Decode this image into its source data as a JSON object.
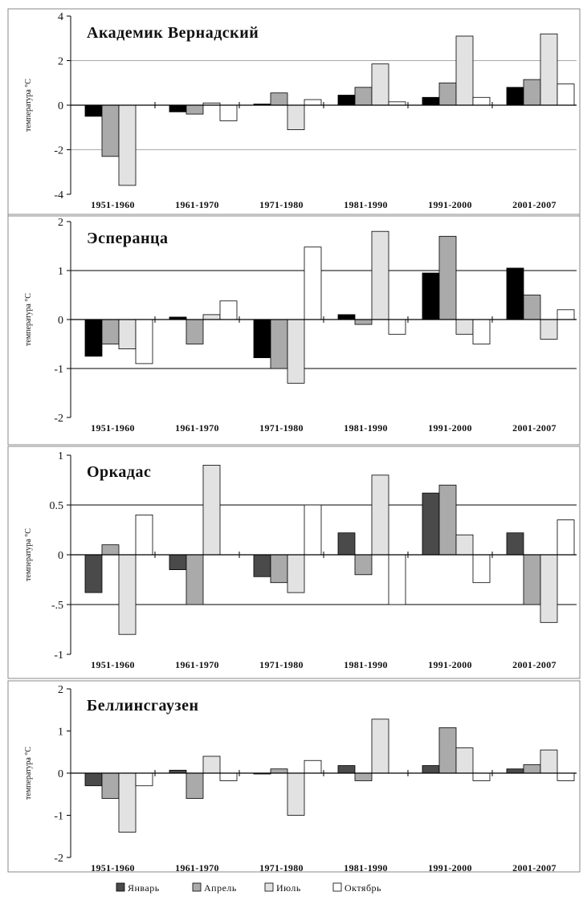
{
  "legend": [
    "Январь",
    "Апрель",
    "Июль",
    "Октябрь"
  ],
  "chart_data": [
    {
      "type": "bar",
      "title": "Академик Вернадский",
      "ylabel": "температура °С",
      "ylim": [
        -4,
        4
      ],
      "yticks": [
        -4,
        -2,
        0,
        2,
        4
      ],
      "gridlines": [
        -2,
        2
      ],
      "grid_color": "#aaaaaa",
      "categories": [
        "1951-1960",
        "1961-1970",
        "1971-1980",
        "1981-1990",
        "1991-2000",
        "2001-2007"
      ],
      "series": [
        {
          "name": "Январь",
          "color": "#000000",
          "values": [
            -0.5,
            -0.3,
            0.05,
            0.45,
            0.35,
            0.8
          ]
        },
        {
          "name": "Апрель",
          "color": "#aaaaaa",
          "values": [
            -2.3,
            -0.4,
            0.55,
            0.8,
            1.0,
            1.15
          ]
        },
        {
          "name": "Июль",
          "color": "#e2e2e2",
          "values": [
            -3.6,
            0.1,
            -1.1,
            1.85,
            3.1,
            3.2
          ]
        },
        {
          "name": "Октябрь",
          "color": "#ffffff",
          "values": [
            0.0,
            -0.7,
            0.25,
            0.15,
            0.35,
            0.95
          ]
        }
      ]
    },
    {
      "type": "bar",
      "title": "Эсперанца",
      "ylabel": "температура °С",
      "ylim": [
        -2,
        2
      ],
      "yticks": [
        -2,
        -1,
        0,
        1,
        2
      ],
      "gridlines": [
        -1,
        1
      ],
      "grid_color": "#000000",
      "categories": [
        "1951-1960",
        "1961-1970",
        "1971-1980",
        "1981-1990",
        "1991-2000",
        "2001-2007"
      ],
      "series": [
        {
          "name": "Январь",
          "color": "#000000",
          "values": [
            -0.75,
            0.05,
            -0.78,
            0.1,
            0.95,
            1.05
          ]
        },
        {
          "name": "Апрель",
          "color": "#aaaaaa",
          "values": [
            -0.5,
            -0.5,
            -1.0,
            -0.1,
            1.7,
            0.5
          ]
        },
        {
          "name": "Июль",
          "color": "#e2e2e2",
          "values": [
            -0.6,
            0.1,
            -1.3,
            1.8,
            -0.3,
            -0.4
          ]
        },
        {
          "name": "Октябрь",
          "color": "#ffffff",
          "values": [
            -0.9,
            0.38,
            1.48,
            -0.3,
            -0.5,
            0.2
          ]
        }
      ]
    },
    {
      "type": "bar",
      "title": "Оркадас",
      "ylabel": "температура °С",
      "ylim": [
        -1,
        1
      ],
      "yticks": [
        -1,
        -0.5,
        0,
        0.5,
        1
      ],
      "gridlines": [
        -0.5,
        0.5
      ],
      "grid_color": "#000000",
      "categories": [
        "1951-1960",
        "1961-1970",
        "1971-1980",
        "1981-1990",
        "1991-2000",
        "2001-2007"
      ],
      "series": [
        {
          "name": "Январь",
          "color": "#4a4a4a",
          "values": [
            -0.38,
            -0.15,
            -0.22,
            0.22,
            0.62,
            0.22
          ]
        },
        {
          "name": "Апрель",
          "color": "#aaaaaa",
          "values": [
            0.1,
            -0.5,
            -0.28,
            -0.2,
            0.7,
            -0.5
          ]
        },
        {
          "name": "Июль",
          "color": "#e2e2e2",
          "values": [
            -0.8,
            0.9,
            -0.38,
            0.8,
            0.2,
            -0.68
          ]
        },
        {
          "name": "Октябрь",
          "color": "#ffffff",
          "values": [
            0.4,
            0.0,
            0.5,
            -0.5,
            -0.28,
            0.35
          ]
        }
      ]
    },
    {
      "type": "bar",
      "title": "Беллинсгаузен",
      "ylabel": "температура °С",
      "ylim": [
        -2,
        2
      ],
      "yticks": [
        -2,
        -1,
        0,
        1,
        2
      ],
      "gridlines": [],
      "grid_color": "#000000",
      "categories": [
        "1951-1960",
        "1961-1970",
        "1971-1980",
        "1981-1990",
        "1991-2000",
        "2001-2007"
      ],
      "series": [
        {
          "name": "Январь",
          "color": "#4a4a4a",
          "values": [
            -0.3,
            0.07,
            -0.02,
            0.18,
            0.18,
            0.1
          ]
        },
        {
          "name": "Апрель",
          "color": "#aaaaaa",
          "values": [
            -0.6,
            -0.6,
            0.1,
            -0.18,
            1.08,
            0.2
          ]
        },
        {
          "name": "Июль",
          "color": "#e2e2e2",
          "values": [
            -1.4,
            0.4,
            -1.0,
            1.28,
            0.6,
            0.55
          ]
        },
        {
          "name": "Октябрь",
          "color": "#ffffff",
          "values": [
            -0.3,
            -0.18,
            0.3,
            0.0,
            -0.18,
            -0.18
          ]
        }
      ]
    }
  ]
}
